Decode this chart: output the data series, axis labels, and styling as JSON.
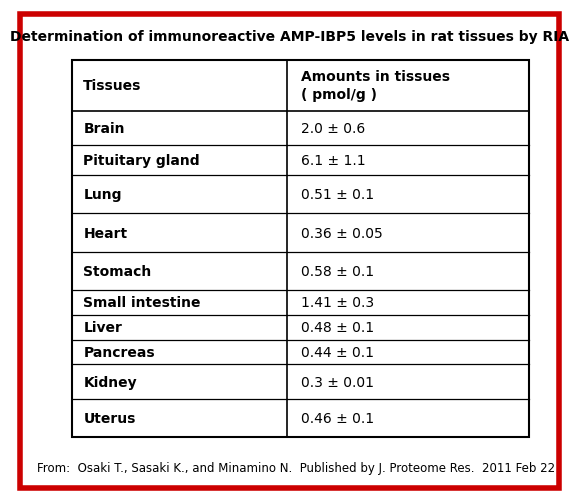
{
  "title": "Determination of immunoreactive AMP-IBP5 levels in rat tissues by RIA",
  "col1_header": "Tissues",
  "col2_header": "Amounts in tissues\n( pmol/g )",
  "rows": [
    [
      "Brain",
      "2.0 ± 0.6"
    ],
    [
      "Pituitary gland",
      "6.1 ± 1.1"
    ],
    [
      "Lung",
      "0.51 ± 0.1"
    ],
    [
      "Heart",
      "0.36 ± 0.05"
    ],
    [
      "Stomach",
      "0.58 ± 0.1"
    ],
    [
      "Small intestine",
      "1.41 ± 0.3"
    ],
    [
      "Liver",
      "0.48 ± 0.1"
    ],
    [
      "Pancreas",
      "0.44 ± 0.1"
    ],
    [
      "Kidney",
      "0.3 ± 0.01"
    ],
    [
      "Uterus",
      "0.46 ± 0.1"
    ]
  ],
  "footer": "From:  Osaki T., Sasaki K., and Minamino N.  Published by J. Proteome Res.  2011 Feb 22",
  "bg_color": "#ffffff",
  "border_color": "#cc0000",
  "table_border_color": "#000000",
  "title_fontsize": 10,
  "header_fontsize": 10,
  "row_fontsize": 10,
  "footer_fontsize": 8.5
}
